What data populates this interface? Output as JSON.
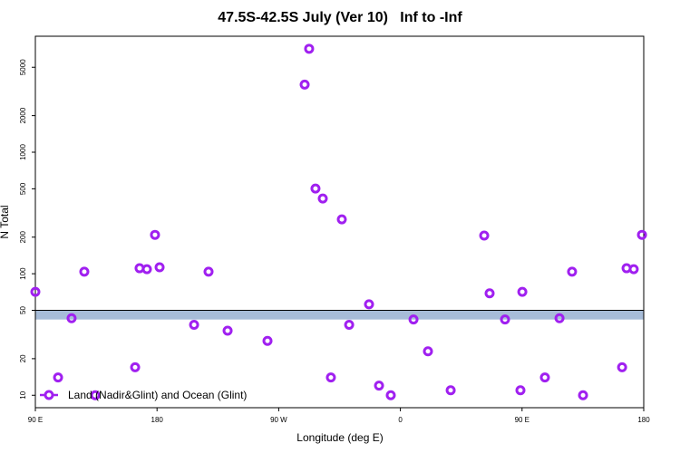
{
  "chart_data": {
    "type": "scatter",
    "title": "47.5S-42.5S July (Ver 10)   Inf to -Inf",
    "x_label": "Longitude (deg E)",
    "y_label": "N Total",
    "log_y": true,
    "xlim": [
      90,
      540
    ],
    "ylim": [
      7.9,
      9000
    ],
    "xticks": [
      {
        "value": 90,
        "label": "90 E"
      },
      {
        "value": 180,
        "label": "180"
      },
      {
        "value": 270,
        "label": "90 W"
      },
      {
        "value": 360,
        "label": "0"
      },
      {
        "value": 450,
        "label": "90 E"
      },
      {
        "value": 540,
        "label": "180"
      }
    ],
    "yticks": [
      10,
      20,
      50,
      100,
      200,
      500,
      1000,
      2000,
      5000
    ],
    "band": [
      42,
      50
    ],
    "band_color": "#a7bcd8",
    "legend": "bottom-left",
    "series": [
      {
        "name": "Land (Nadir&Glint) and Ocean (Glint)",
        "color": "#a020f0",
        "x": [
          90,
          106.8,
          116.8,
          126.2,
          134.3,
          163.8,
          167.1,
          172.5,
          178.5,
          181.9,
          207.4,
          218.1,
          232.2,
          261.7,
          289.2,
          292.5,
          297.2,
          302.6,
          308.6,
          316.7,
          322.1,
          336.8,
          344.2,
          352.9,
          369.7,
          380.4,
          397.2,
          422,
          426,
          437.4,
          448.8,
          450.2,
          466.9,
          477.7,
          487,
          495.1,
          524,
          527.3,
          532.6,
          538.7
        ],
        "values": [
          71,
          14,
          43,
          104,
          10,
          17,
          111,
          109,
          209,
          113,
          38,
          104,
          34,
          28,
          3600,
          7100,
          502,
          416,
          14,
          280,
          38,
          56,
          12,
          10,
          42,
          23,
          11,
          206,
          69,
          42,
          11,
          71,
          14,
          43,
          104,
          10,
          17,
          111,
          109,
          209
        ]
      }
    ]
  }
}
